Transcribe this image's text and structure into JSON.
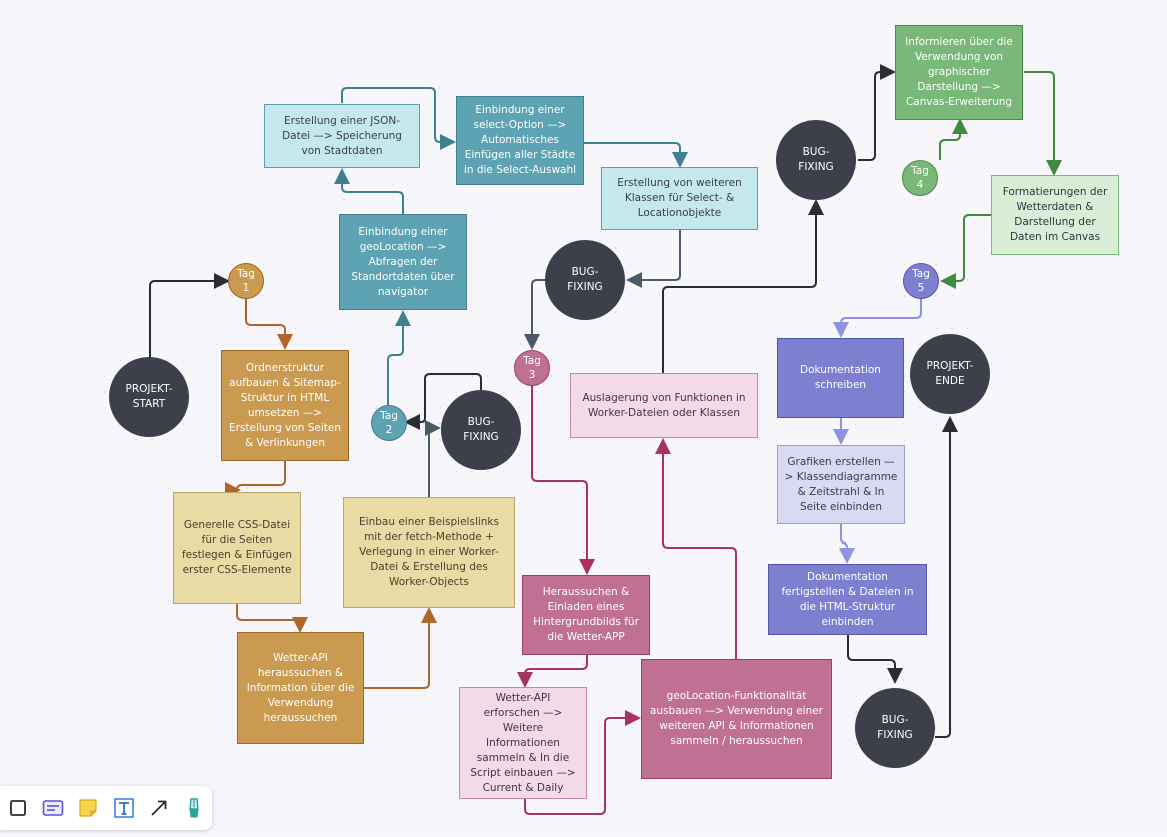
{
  "nodes": {
    "projekt_start": "PROJEKT-\nSTART",
    "projekt_ende": "PROJEKT-\nENDE",
    "tag1": "Tag\n1",
    "tag2": "Tag\n2",
    "tag3": "Tag\n3",
    "tag4": "Tag\n4",
    "tag5": "Tag\n5",
    "bug1": "BUG-\nFIXING",
    "bug2": "BUG-\nFIXING",
    "bug3": "BUG-\nFIXING",
    "bug4": "BUG-\nFIXING",
    "ordnerstruktur": "Ordnerstruktur aufbauen & Sitemap-Struktur in HTML umsetzen —> Erstellung von Seiten & Verlinkungen",
    "css_datei": "Generelle CSS-Datei für die Seiten festlegen & Einfügen erster CSS-Elemente",
    "wetter_api": "Wetter-API heraussuchen & Information über die Verwendung heraussuchen",
    "einbau_beispiel": "Einbau einer Beispielslinks mit der fetch-Methode + Verlegung in einer Worker-Datei & Erstellung des Worker-Objects",
    "geolocation_einbindung": "Einbindung einer geoLocation —> Abfragen der Standortdaten über navigator",
    "json_datei": "Erstellung einer JSON-Datei —> Speicherung von Stadtdaten",
    "select_option": "Einbindung einer select-Option —> Automatisches Einfügen aller Städte in die Select-Auswahl",
    "weitere_klassen": "Erstellung von weiteren Klassen für Select- & Locationobjekte",
    "auslagerung": "Auslagerung von Funktionen in Worker-Dateien oder Klassen",
    "hintergrundbild": "Heraussuchen & Einladen eines Hintergrundbilds für die Wetter-APP",
    "wetter_api_erforschen": "Wetter-API erforschen —> Weitere Informationen sammeln & In die Script einbauen —> Current & Daily",
    "geolocation_ausbauen": "geoLocation-Funktionalität ausbauen —> Verwendung einer weiteren API & Informationen sammeln / heraussuchen",
    "canvas": "Informieren über die Verwendung von graphischer Darstellung —> Canvas-Erweiterung",
    "formatierungen": "Formatierungen der Wetterdaten & Darstellung der Daten im Canvas",
    "doku_schreiben": "Dokumentation schreiben",
    "grafiken": "Grafiken erstellen —> Klassendiagramme & Zeitstrahl & In Seite einbinden",
    "doku_fertig": "Dokumentation fertigstellen & Dateien in die HTML-Struktur einbinden"
  },
  "toolbar": {
    "tools": [
      "shape-tool",
      "card-tool",
      "sticky-note-tool",
      "text-tool",
      "connector-tool",
      "pen-tool"
    ]
  },
  "colors": {
    "brown": "#b0652a",
    "teal": "#3f7f90",
    "crimson": "#a8345e",
    "green": "#3f8a3e",
    "purple": "#8f92e0",
    "slate": "#4a5a66"
  }
}
